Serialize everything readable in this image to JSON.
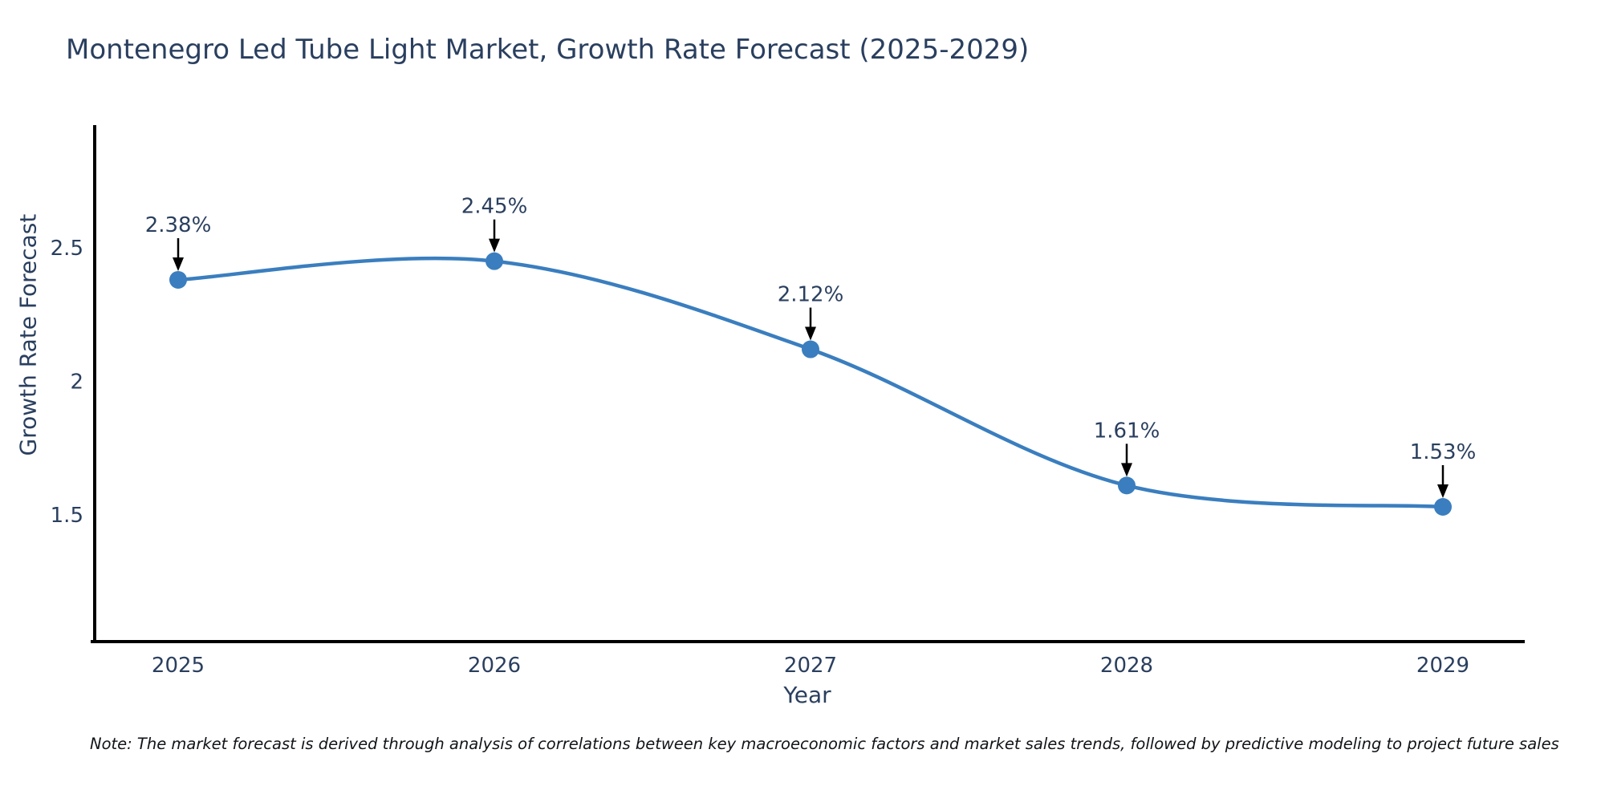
{
  "title": "Montenegro Led Tube Light Market, Growth Rate Forecast (2025-2029)",
  "note": "Note: The market forecast is derived through analysis of correlations between key macroeconomic factors and market sales trends, followed by predictive modeling to project future sales",
  "colors": {
    "accent_line": "#3a7ebf",
    "marker": "#3a7ebf",
    "text": "#2a3f5f",
    "axis_line": "#000000",
    "arrow": "#000000",
    "background": "#ffffff"
  },
  "chart_data": {
    "type": "line",
    "title": "Montenegro Led Tube Light Market, Growth Rate Forecast (2025-2029)",
    "x": [
      2025,
      2026,
      2027,
      2028,
      2029
    ],
    "y": [
      2.38,
      2.45,
      2.12,
      1.61,
      1.53
    ],
    "point_labels": [
      "2.38%",
      "2.45%",
      "2.12%",
      "1.61%",
      "1.53%"
    ],
    "xlabel": "Year",
    "ylabel": "Growth Rate Forecast",
    "xticks": [
      2025,
      2026,
      2027,
      2028,
      2029
    ],
    "yticks": [
      1.5,
      2,
      2.5
    ],
    "xlim": [
      2024.72,
      2029.26
    ],
    "ylim": [
      1.03,
      2.96
    ],
    "line_shape": "spline",
    "grid": false,
    "legend": "none",
    "annotations_have_arrows": true
  }
}
